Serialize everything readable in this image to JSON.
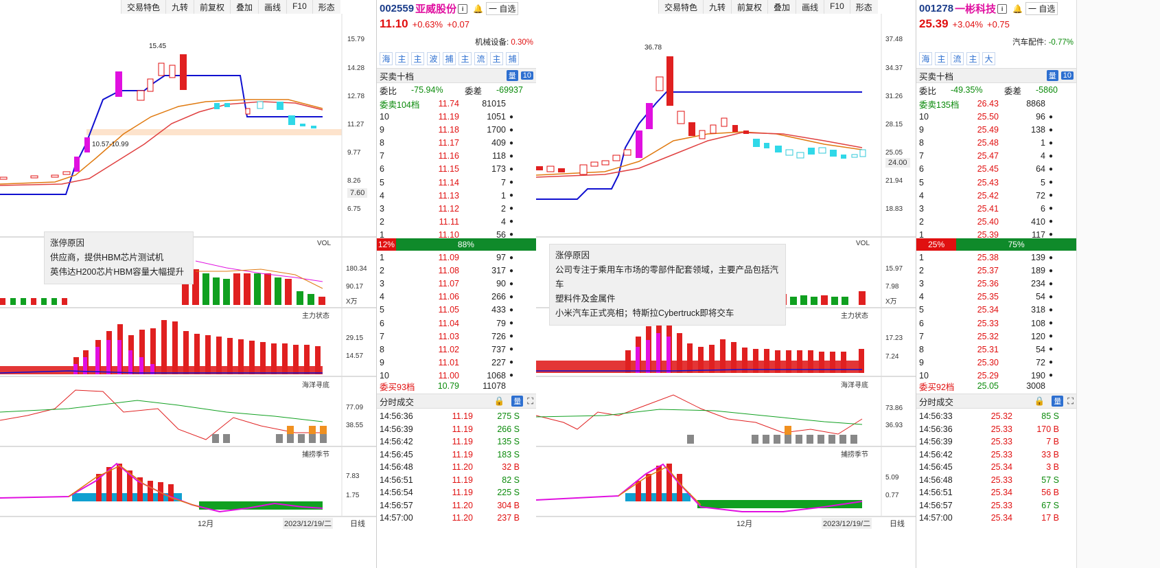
{
  "toolbar": {
    "items": [
      "交易特色",
      "九转",
      "前复权",
      "叠加",
      "画线",
      "F10",
      "形态"
    ]
  },
  "left_chart": {
    "price_ticks": [
      "15.79",
      "14.28",
      "12.78",
      "11.27",
      "9.77",
      "8.26",
      "6.75"
    ],
    "current_price_tag": "7.60",
    "annotation_high": "15.45",
    "annotation_range": "10.57-10.99",
    "vol_label": "VOL",
    "vol_ticks": [
      "180.34",
      "90.17",
      "X万"
    ],
    "main_label": "主力状态",
    "main_ticks": [
      "29.15",
      "14.57"
    ],
    "ocean_label": "海洋寻底",
    "ocean_ticks": [
      "77.09",
      "38.55"
    ],
    "season_label": "捕捞季节",
    "season_ticks": [
      "7.83",
      "1.75"
    ],
    "month": "12月",
    "date": "2023/12/19/二",
    "period": "日线",
    "tooltip": {
      "title": "涨停原因",
      "line1": "供应商，提供HBM芯片测试机",
      "line2": "英伟达H200芯片HBM容量大幅提升"
    }
  },
  "left_quote": {
    "code": "002559",
    "name": "亚威股份",
    "watch": "一 自选",
    "price": "11.10",
    "change_pct": "+0.63%",
    "change": "+0.07",
    "sector": "机械设备:",
    "sector_pct": "0.30%",
    "tabs": [
      "海",
      "主",
      "主",
      "波",
      "捕",
      "主",
      "流",
      "主",
      "捕"
    ],
    "book_title": "买卖十档",
    "book_badge_q": "量",
    "book_badge_n": "10",
    "weibi_label": "委比",
    "weibi": "-75.94%",
    "weicha_label": "委差",
    "weicha": "-69937",
    "ask_header": [
      "委卖104档",
      "11.74",
      "81015"
    ],
    "asks": [
      [
        "10",
        "11.19",
        "1051"
      ],
      [
        "9",
        "11.18",
        "1700"
      ],
      [
        "8",
        "11.17",
        "409"
      ],
      [
        "7",
        "11.16",
        "118"
      ],
      [
        "6",
        "11.15",
        "173"
      ],
      [
        "5",
        "11.14",
        "7"
      ],
      [
        "4",
        "11.13",
        "1"
      ],
      [
        "3",
        "11.12",
        "2"
      ],
      [
        "2",
        "11.11",
        "4"
      ],
      [
        "1",
        "11.10",
        "56"
      ]
    ],
    "ratio_red": "12%",
    "ratio_green": "88%",
    "bids": [
      [
        "1",
        "11.09",
        "97"
      ],
      [
        "2",
        "11.08",
        "317"
      ],
      [
        "3",
        "11.07",
        "90"
      ],
      [
        "4",
        "11.06",
        "266"
      ],
      [
        "5",
        "11.05",
        "433"
      ],
      [
        "6",
        "11.04",
        "79"
      ],
      [
        "7",
        "11.03",
        "726"
      ],
      [
        "8",
        "11.02",
        "737"
      ],
      [
        "9",
        "11.01",
        "227"
      ],
      [
        "10",
        "11.00",
        "1068"
      ]
    ],
    "bid_footer": [
      "委买93档",
      "10.79",
      "11078"
    ],
    "trades_title": "分时成交",
    "trades": [
      [
        "14:56:36",
        "11.19",
        "275 S"
      ],
      [
        "14:56:39",
        "11.19",
        "266 S"
      ],
      [
        "14:56:42",
        "11.19",
        "135 S"
      ],
      [
        "14:56:45",
        "11.19",
        "183 S"
      ],
      [
        "14:56:48",
        "11.20",
        "32 B"
      ],
      [
        "14:56:51",
        "11.19",
        "82 S"
      ],
      [
        "14:56:54",
        "11.19",
        "225 S"
      ],
      [
        "14:56:57",
        "11.20",
        "304 B"
      ],
      [
        "14:57:00",
        "11.20",
        "237 B"
      ]
    ]
  },
  "right_chart": {
    "price_ticks": [
      "37.48",
      "34.37",
      "31.26",
      "28.15",
      "25.05",
      "21.94",
      "18.83"
    ],
    "current_price_tag": "24.00",
    "annotation_high": "36.78",
    "vol_label": "VOL",
    "vol_ticks": [
      "15.97",
      "7.98",
      "X万"
    ],
    "main_label": "主力状态",
    "main_ticks": [
      "17.23",
      "7.24"
    ],
    "ocean_label": "海洋寻底",
    "ocean_ticks": [
      "73.86",
      "36.93"
    ],
    "season_label": "捕捞季节",
    "season_ticks": [
      "5.09",
      "0.77"
    ],
    "month": "12月",
    "date": "2023/12/19/二",
    "period": "日线",
    "tooltip": {
      "title": "涨停原因",
      "line1": "公司专注于乘用车市场的零部件配套领域，主要产品包括汽车",
      "line2": "塑料件及金属件",
      "line3": "小米汽车正式亮相；特斯拉Cybertruck即将交车"
    }
  },
  "right_quote": {
    "code": "001278",
    "name": "一彬科技",
    "watch": "一 自选",
    "price": "25.39",
    "change_pct": "+3.04%",
    "change": "+0.75",
    "sector": "汽车配件:",
    "sector_pct": "-0.77%",
    "tabs": [
      "海",
      "主",
      "流",
      "主",
      "大"
    ],
    "book_title": "买卖十档",
    "book_badge_q": "量",
    "book_badge_n": "10",
    "weibi_label": "委比",
    "weibi": "-49.35%",
    "weicha_label": "委差",
    "weicha": "-5860",
    "ask_header": [
      "委卖135档",
      "26.43",
      "8868"
    ],
    "asks": [
      [
        "10",
        "25.50",
        "96"
      ],
      [
        "9",
        "25.49",
        "138"
      ],
      [
        "8",
        "25.48",
        "1"
      ],
      [
        "7",
        "25.47",
        "4"
      ],
      [
        "6",
        "25.45",
        "64"
      ],
      [
        "5",
        "25.43",
        "5"
      ],
      [
        "4",
        "25.42",
        "72"
      ],
      [
        "3",
        "25.41",
        "6"
      ],
      [
        "2",
        "25.40",
        "410"
      ],
      [
        "1",
        "25.39",
        "117"
      ]
    ],
    "ratio_red": "25%",
    "ratio_green": "75%",
    "bids": [
      [
        "1",
        "25.38",
        "139"
      ],
      [
        "2",
        "25.37",
        "189"
      ],
      [
        "3",
        "25.36",
        "234"
      ],
      [
        "4",
        "25.35",
        "54"
      ],
      [
        "5",
        "25.34",
        "318"
      ],
      [
        "6",
        "25.33",
        "108"
      ],
      [
        "7",
        "25.32",
        "120"
      ],
      [
        "8",
        "25.31",
        "54"
      ],
      [
        "9",
        "25.30",
        "72"
      ],
      [
        "10",
        "25.29",
        "190"
      ]
    ],
    "bid_footer": [
      "委买92档",
      "25.05",
      "3008"
    ],
    "trades_title": "分时成交",
    "trades": [
      [
        "14:56:33",
        "25.32",
        "85 S"
      ],
      [
        "14:56:36",
        "25.33",
        "170 B"
      ],
      [
        "14:56:39",
        "25.33",
        "7 B"
      ],
      [
        "14:56:42",
        "25.33",
        "33 B"
      ],
      [
        "14:56:45",
        "25.34",
        "3 B"
      ],
      [
        "14:56:48",
        "25.33",
        "57 S"
      ],
      [
        "14:56:51",
        "25.34",
        "56 B"
      ],
      [
        "14:56:57",
        "25.33",
        "67 S"
      ],
      [
        "14:57:00",
        "25.34",
        "17 B"
      ]
    ]
  }
}
